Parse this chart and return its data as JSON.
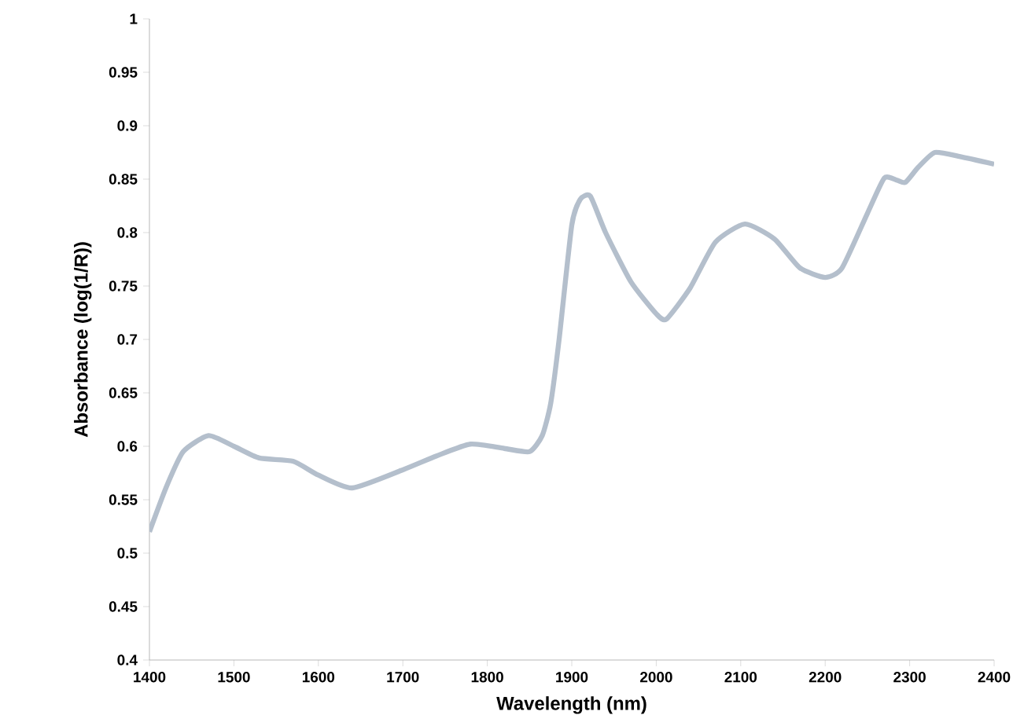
{
  "chart_data": {
    "type": "line",
    "xlabel": "Wavelength (nm)",
    "ylabel": "Absorbance (log(1/R))",
    "x": [
      1400,
      1420,
      1440,
      1470,
      1500,
      1530,
      1570,
      1600,
      1640,
      1700,
      1740,
      1780,
      1820,
      1850,
      1865,
      1875,
      1885,
      1900,
      1910,
      1922,
      1940,
      1970,
      2000,
      2012,
      2040,
      2070,
      2105,
      2140,
      2170,
      2200,
      2220,
      2250,
      2270,
      2285,
      2295,
      2310,
      2330,
      2360,
      2400
    ],
    "series": [
      {
        "color": "#b4bfcc",
        "values": [
          0.52,
          0.562,
          0.595,
          0.61,
          0.6,
          0.589,
          0.586,
          0.573,
          0.561,
          0.578,
          0.591,
          0.602,
          0.598,
          0.595,
          0.61,
          0.64,
          0.7,
          0.807,
          0.831,
          0.834,
          0.8,
          0.754,
          0.724,
          0.719,
          0.748,
          0.791,
          0.808,
          0.794,
          0.767,
          0.758,
          0.767,
          0.818,
          0.851,
          0.849,
          0.847,
          0.861,
          0.875,
          0.871,
          0.864
        ]
      }
    ],
    "xlim": [
      1400,
      2400
    ],
    "xticks": [
      1400,
      1500,
      1600,
      1700,
      1800,
      1900,
      2000,
      2100,
      2200,
      2300,
      2400
    ],
    "ylim": [
      0.4,
      1
    ],
    "yticks": [
      0.4,
      0.45,
      0.5,
      0.55,
      0.6,
      0.65,
      0.7,
      0.75,
      0.8,
      0.85,
      0.9,
      0.95,
      1
    ],
    "marker": "none",
    "line_style": "solid"
  }
}
